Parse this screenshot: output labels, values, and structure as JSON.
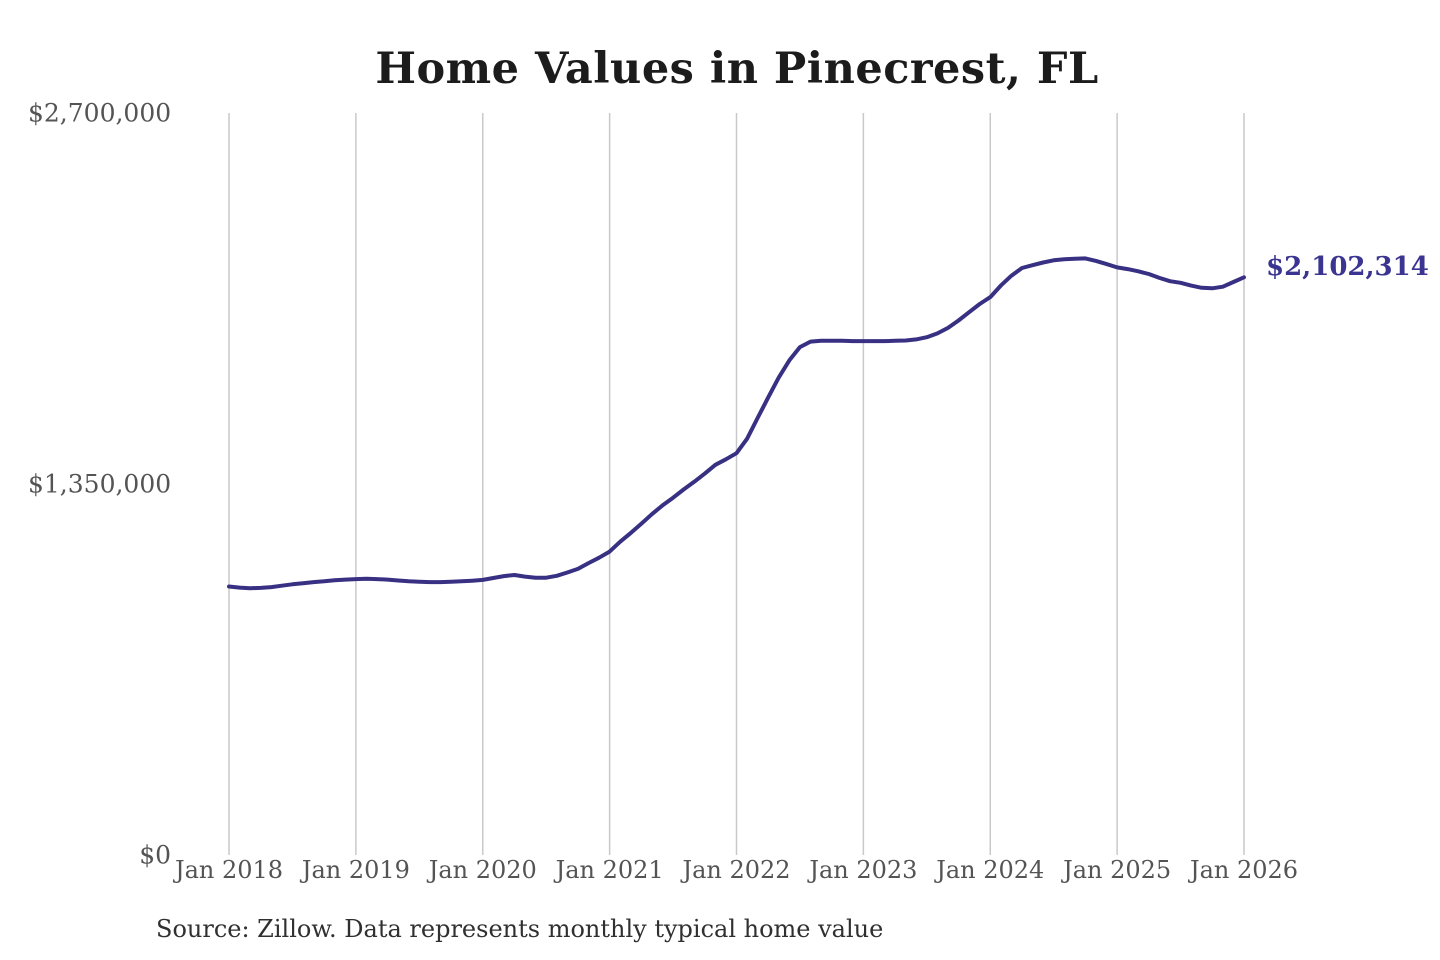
{
  "page": {
    "background_color": "#ffffff"
  },
  "chart_data": {
    "type": "line",
    "title": "Home Values in Pinecrest, FL",
    "source_note": "Source: Zillow. Data represents monthly typical home value",
    "end_label": "$2,102,314",
    "end_value": 2102314,
    "frequency": "monthly",
    "x_start": "Jan 2018",
    "x_end": "Jan 2026",
    "x_tick_labels": [
      "Jan 2018",
      "Jan 2019",
      "Jan 2020",
      "Jan 2021",
      "Jan 2022",
      "Jan 2023",
      "Jan 2024",
      "Jan 2025",
      "Jan 2026"
    ],
    "y_tick_labels": [
      "$0",
      "$1,350,000",
      "$2,700,000"
    ],
    "y_tick_values": [
      0,
      1350000,
      2700000
    ],
    "ylim": [
      0,
      2700000
    ],
    "grid": "vertical-only",
    "legend": "none",
    "line_color": "#383183",
    "label_color": "#3b3491",
    "gridline_color": "#c9c9c9",
    "axis_text_color": "#545454",
    "series": [
      {
        "name": "Typical home value",
        "values": [
          977000,
          973000,
          971000,
          972000,
          975000,
          980000,
          985000,
          989000,
          993000,
          996000,
          1000000,
          1002000,
          1004000,
          1005000,
          1004000,
          1002000,
          999000,
          996000,
          994000,
          993000,
          993000,
          994000,
          996000,
          998000,
          1001000,
          1008000,
          1015000,
          1019000,
          1013000,
          1009000,
          1009000,
          1016000,
          1028000,
          1041000,
          1062000,
          1082000,
          1104000,
          1140000,
          1172000,
          1205000,
          1240000,
          1272000,
          1300000,
          1330000,
          1358000,
          1388000,
          1420000,
          1440000,
          1462000,
          1515000,
          1590000,
          1665000,
          1738000,
          1800000,
          1848000,
          1868000,
          1871000,
          1871000,
          1871000,
          1870000,
          1870000,
          1870000,
          1870000,
          1871000,
          1872000,
          1876000,
          1884000,
          1898000,
          1918000,
          1945000,
          1975000,
          2005000,
          2030000,
          2072000,
          2108000,
          2136000,
          2146000,
          2156000,
          2164000,
          2168000,
          2170000,
          2171000,
          2162000,
          2150000,
          2138000,
          2132000,
          2124000,
          2114000,
          2100000,
          2088000,
          2082000,
          2072000,
          2064000,
          2062000,
          2068000,
          2085000,
          2102314
        ]
      }
    ]
  }
}
